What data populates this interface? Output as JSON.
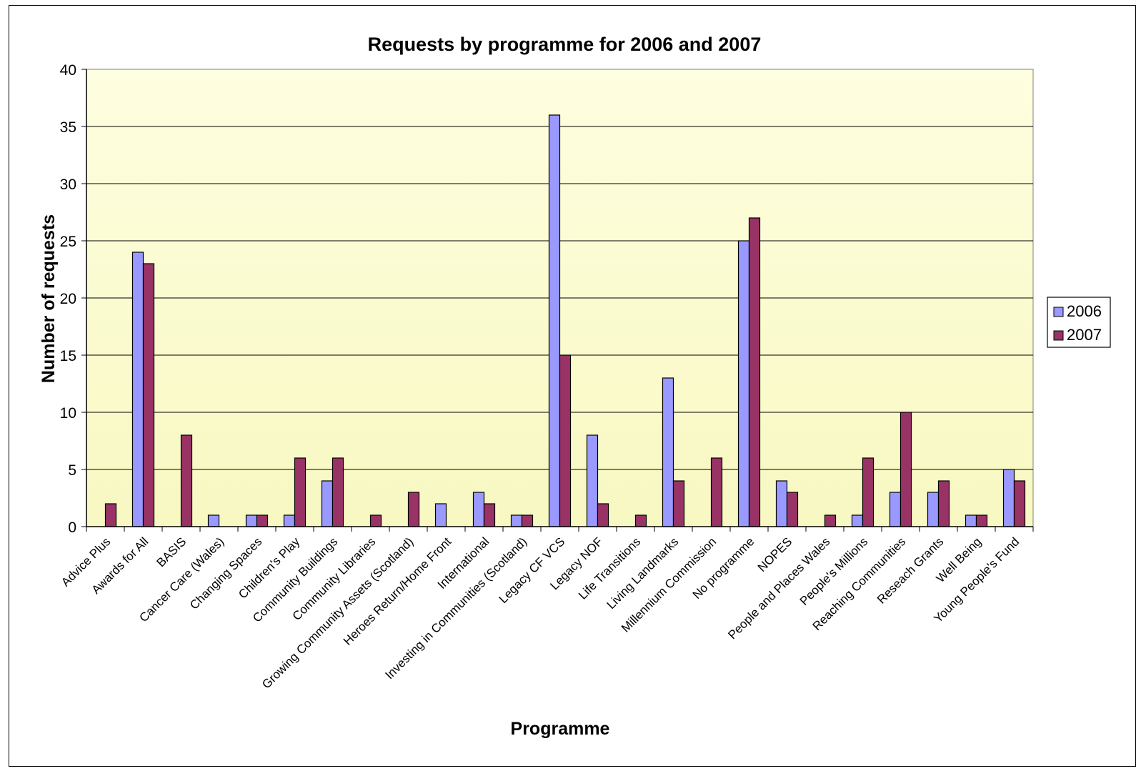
{
  "chart_data": {
    "type": "bar",
    "title": "Requests by programme for 2006 and 2007",
    "xlabel": "Programme",
    "ylabel": "Number of requests",
    "ylim": [
      0,
      40
    ],
    "yticks": [
      0,
      5,
      10,
      15,
      20,
      25,
      30,
      35,
      40
    ],
    "grid": true,
    "legend_position": "right",
    "categories": [
      "Advice Plus",
      "Awards for All",
      "BASIS",
      "Cancer Care (Wales)",
      "Changing Spaces",
      "Children's Play",
      "Community Buildings",
      "Community Libraries",
      "Growing Community Assets (Scotland)",
      "Heroes Return/Home Front",
      "International",
      "Investing in Communities (Scotland)",
      "Legacy CF VCS",
      "Legacy NOF",
      "Life Transitions",
      "Living Landmarks",
      "Millennium Commission",
      "No programme",
      "NOPES",
      "People and Places Wales",
      "People's Millions",
      "Reaching Communities",
      "Reseach Grants",
      "Well Being",
      "Young People's Fund"
    ],
    "series": [
      {
        "name": "2006",
        "color": "#9999ff",
        "values": [
          0,
          24,
          0,
          1,
          1,
          1,
          4,
          0,
          0,
          2,
          3,
          1,
          36,
          8,
          0,
          13,
          0,
          25,
          4,
          0,
          1,
          3,
          3,
          1,
          5
        ]
      },
      {
        "name": "2007",
        "color": "#993366",
        "values": [
          2,
          23,
          8,
          0,
          1,
          6,
          6,
          1,
          3,
          0,
          2,
          1,
          15,
          2,
          1,
          4,
          6,
          27,
          3,
          1,
          6,
          10,
          4,
          1,
          4
        ]
      }
    ],
    "plot_background": [
      "#fefee0",
      "#f8f8c2"
    ]
  }
}
